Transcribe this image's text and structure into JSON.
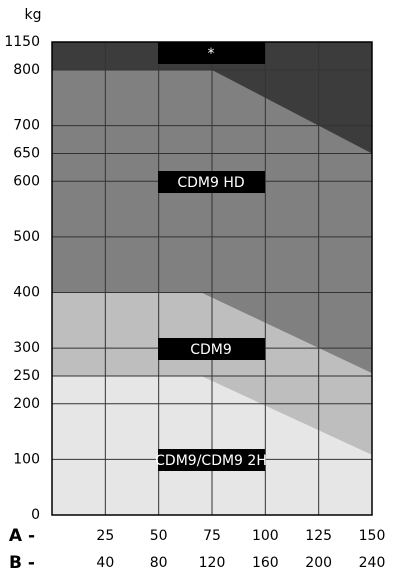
{
  "chart_data": {
    "type": "region",
    "y_label": "kg",
    "x_row_labels": [
      "A -",
      "B -"
    ],
    "xlim": [
      0,
      150
    ],
    "xticks": [
      25,
      50,
      75,
      100,
      125,
      150
    ],
    "x2lim": [
      0,
      240
    ],
    "x2ticks": [
      40,
      80,
      120,
      160,
      200,
      240
    ],
    "ylim": [
      0,
      1150
    ],
    "yticks": [
      0,
      100,
      200,
      250,
      300,
      400,
      500,
      600,
      650,
      700,
      800,
      1150
    ],
    "grid": true,
    "series": [
      {
        "name": "*",
        "color": "#3c3c3c",
        "x": [
          0,
          150
        ],
        "values": [
          1150,
          1150
        ]
      },
      {
        "name": "CDM9 HD",
        "color": "#808080",
        "x": [
          0,
          75,
          150
        ],
        "values": [
          800,
          800,
          650
        ]
      },
      {
        "name": "CDM9",
        "color": "#bebebe",
        "x": [
          0,
          70,
          150
        ],
        "values": [
          400,
          400,
          255
        ]
      },
      {
        "name": "CDM9/CDM9 2H",
        "color": "#e6e6e6",
        "x": [
          0,
          70,
          150
        ],
        "values": [
          250,
          250,
          108
        ]
      }
    ]
  }
}
